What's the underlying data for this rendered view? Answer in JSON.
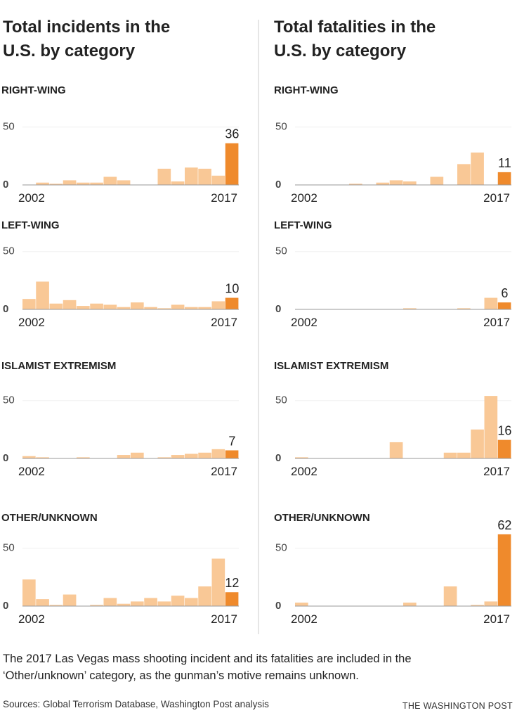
{
  "column_titles": [
    [
      "Total incidents in the",
      "U.S. by category"
    ],
    [
      "Total fatalities in the",
      "U.S. by category"
    ]
  ],
  "chart_data": [
    {
      "type": "bar",
      "title": "RIGHT-WING",
      "categories": [
        "2002",
        null,
        null,
        null,
        null,
        null,
        null,
        null,
        null,
        null,
        null,
        null,
        null,
        null,
        null,
        "2017"
      ],
      "values": [
        0,
        2,
        1,
        4,
        2,
        2,
        7,
        4,
        0,
        0,
        14,
        3,
        15,
        14,
        8,
        36
      ],
      "colors": [
        "#f9c896",
        "#f9c896",
        "#f9c896",
        "#f9c896",
        "#f9c896",
        "#f9c896",
        "#f9c896",
        "#f9c896",
        "#f9c896",
        "#f9c896",
        "#f9c896",
        "#f9c896",
        "#f9c896",
        "#f9c896",
        "#f9c896",
        "#ef8a2c"
      ],
      "ylim": [
        0,
        65
      ],
      "yticks": [
        0,
        50
      ]
    },
    {
      "type": "bar",
      "title": "RIGHT-WING",
      "categories": [
        "2002",
        null,
        null,
        null,
        null,
        null,
        null,
        null,
        null,
        null,
        null,
        null,
        null,
        null,
        null,
        "2017"
      ],
      "values": [
        0,
        0,
        0,
        0,
        1,
        0,
        2,
        4,
        3,
        0,
        7,
        0,
        18,
        28,
        0,
        11
      ],
      "colors": [
        "#f9c896",
        "#f9c896",
        "#f9c896",
        "#f9c896",
        "#f9c896",
        "#f9c896",
        "#f9c896",
        "#f9c896",
        "#f9c896",
        "#f9c896",
        "#f9c896",
        "#f9c896",
        "#f9c896",
        "#f9c896",
        "#f9c896",
        "#ef8a2c"
      ],
      "ylim": [
        0,
        65
      ],
      "yticks": [
        0,
        50
      ]
    },
    {
      "type": "bar",
      "title": "LEFT-WING",
      "categories": [
        "2002",
        null,
        null,
        null,
        null,
        null,
        null,
        null,
        null,
        null,
        null,
        null,
        null,
        null,
        null,
        "2017"
      ],
      "values": [
        9,
        24,
        5,
        8,
        3,
        5,
        4,
        2,
        6,
        2,
        1,
        4,
        2,
        2,
        7,
        10
      ],
      "colors": [
        "#f9c896",
        "#f9c896",
        "#f9c896",
        "#f9c896",
        "#f9c896",
        "#f9c896",
        "#f9c896",
        "#f9c896",
        "#f9c896",
        "#f9c896",
        "#f9c896",
        "#f9c896",
        "#f9c896",
        "#f9c896",
        "#f9c896",
        "#ef8a2c"
      ],
      "ylim": [
        0,
        65
      ],
      "yticks": [
        0,
        50
      ]
    },
    {
      "type": "bar",
      "title": "LEFT-WING",
      "categories": [
        "2002",
        null,
        null,
        null,
        null,
        null,
        null,
        null,
        null,
        null,
        null,
        null,
        null,
        null,
        null,
        "2017"
      ],
      "values": [
        0,
        0,
        0,
        0,
        0,
        0,
        0,
        0,
        1,
        0,
        0,
        0,
        1,
        0,
        10,
        6
      ],
      "colors": [
        "#f9c896",
        "#f9c896",
        "#f9c896",
        "#f9c896",
        "#f9c896",
        "#f9c896",
        "#f9c896",
        "#f9c896",
        "#f9c896",
        "#f9c896",
        "#f9c896",
        "#f9c896",
        "#f9c896",
        "#f9c896",
        "#f9c896",
        "#ef8a2c"
      ],
      "ylim": [
        0,
        65
      ],
      "yticks": [
        0,
        50
      ]
    },
    {
      "type": "bar",
      "title": "ISLAMIST EXTREMISM",
      "categories": [
        "2002",
        null,
        null,
        null,
        null,
        null,
        null,
        null,
        null,
        null,
        null,
        null,
        null,
        null,
        null,
        "2017"
      ],
      "values": [
        2,
        1,
        0,
        0,
        1,
        0,
        0,
        3,
        5,
        0,
        1,
        3,
        4,
        5,
        8,
        7
      ],
      "colors": [
        "#f9c896",
        "#f9c896",
        "#f9c896",
        "#f9c896",
        "#f9c896",
        "#f9c896",
        "#f9c896",
        "#f9c896",
        "#f9c896",
        "#f9c896",
        "#f9c896",
        "#f9c896",
        "#f9c896",
        "#f9c896",
        "#f9c896",
        "#ef8a2c"
      ],
      "ylim": [
        0,
        65
      ],
      "yticks": [
        0,
        50
      ]
    },
    {
      "type": "bar",
      "title": "ISLAMIST EXTREMISM",
      "categories": [
        "2002",
        null,
        null,
        null,
        null,
        null,
        null,
        null,
        null,
        null,
        null,
        null,
        null,
        null,
        null,
        "2017"
      ],
      "values": [
        1,
        0,
        0,
        0,
        0,
        0,
        0,
        14,
        0,
        0,
        0,
        5,
        5,
        25,
        54,
        16
      ],
      "colors": [
        "#f9c896",
        "#f9c896",
        "#f9c896",
        "#f9c896",
        "#f9c896",
        "#f9c896",
        "#f9c896",
        "#f9c896",
        "#f9c896",
        "#f9c896",
        "#f9c896",
        "#f9c896",
        "#f9c896",
        "#f9c896",
        "#f9c896",
        "#ef8a2c"
      ],
      "ylim": [
        0,
        65
      ],
      "yticks": [
        0,
        50
      ]
    },
    {
      "type": "bar",
      "title": "OTHER/UNKNOWN",
      "categories": [
        "2002",
        null,
        null,
        null,
        null,
        null,
        null,
        null,
        null,
        null,
        null,
        null,
        null,
        null,
        null,
        "2017"
      ],
      "values": [
        23,
        6,
        1,
        10,
        0,
        1,
        7,
        2,
        4,
        7,
        4,
        9,
        7,
        17,
        41,
        12
      ],
      "colors": [
        "#f9c896",
        "#f9c896",
        "#f9c896",
        "#f9c896",
        "#f9c896",
        "#f9c896",
        "#f9c896",
        "#f9c896",
        "#f9c896",
        "#f9c896",
        "#f9c896",
        "#f9c896",
        "#f9c896",
        "#f9c896",
        "#f9c896",
        "#ef8a2c"
      ],
      "ylim": [
        0,
        65
      ],
      "yticks": [
        0,
        50
      ]
    },
    {
      "type": "bar",
      "title": "OTHER/UNKNOWN",
      "categories": [
        "2002",
        null,
        null,
        null,
        null,
        null,
        null,
        null,
        null,
        null,
        null,
        null,
        null,
        null,
        null,
        "2017"
      ],
      "values": [
        3,
        0,
        0,
        0,
        0,
        0,
        0,
        0,
        3,
        0,
        0,
        17,
        0,
        1,
        4,
        62
      ],
      "colors": [
        "#f9c896",
        "#f9c896",
        "#f9c896",
        "#f9c896",
        "#f9c896",
        "#f9c896",
        "#f9c896",
        "#f9c896",
        "#f9c896",
        "#f9c896",
        "#f9c896",
        "#f9c896",
        "#f9c896",
        "#f9c896",
        "#f9c896",
        "#ef8a2c"
      ],
      "ylim": [
        0,
        65
      ],
      "yticks": [
        0,
        50
      ]
    }
  ],
  "footnote": [
    "The 2017 Las Vegas mass shooting incident and its fatalities are included in the",
    "‘Other/unknown’ category, as the gunman’s motive remains unknown."
  ],
  "sources": "Sources: Global Terrorism Database, Washington Post analysis",
  "credit": "THE WASHINGTON POST"
}
